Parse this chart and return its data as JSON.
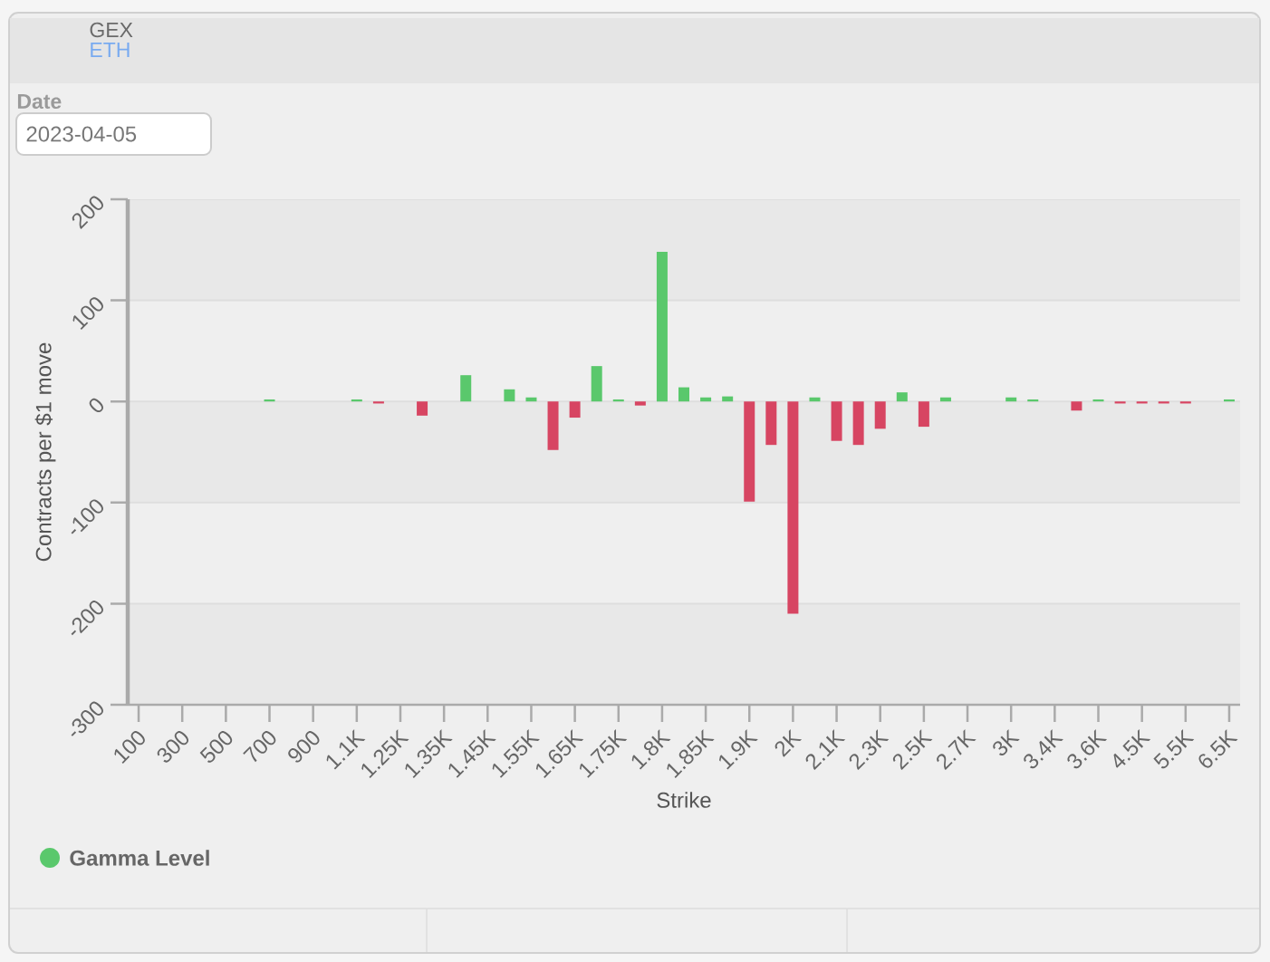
{
  "chart_data": {
    "type": "bar",
    "title": "GEX",
    "subtitle": "ETH",
    "xlabel": "Strike",
    "ylabel": "Contracts per $1 move",
    "annotations": [
      "Date",
      "2023-04-05"
    ],
    "categories": [
      "100",
      null,
      "300",
      null,
      "500",
      null,
      "700",
      null,
      "900",
      null,
      "1.1K",
      null,
      "1.25K",
      null,
      "1.35K",
      null,
      "1.45K",
      null,
      "1.55K",
      null,
      "1.65K",
      null,
      "1.75K",
      null,
      "1.8K",
      null,
      "1.85K",
      null,
      "1.9K",
      null,
      "2K",
      null,
      "2.1K",
      null,
      "2.3K",
      null,
      "2.5K",
      null,
      "2.7K",
      null,
      "3K",
      null,
      "3.4K",
      null,
      "3.6K",
      null,
      "4.5K",
      null,
      "5.5K",
      null,
      "6.5K"
    ],
    "series": [
      {
        "name": "Gamma Level",
        "color": "#5ac86c",
        "colors": [
          null,
          null,
          null,
          null,
          null,
          null,
          "#5ac86c",
          null,
          null,
          null,
          "#5ac86c",
          "#d74562",
          null,
          "#d74562",
          null,
          "#5ac86c",
          null,
          "#5ac86c",
          "#5ac86c",
          "#d74562",
          "#d74562",
          "#5ac86c",
          "#5ac86c",
          "#d74562",
          "#5ac86c",
          "#5ac86c",
          "#5ac86c",
          "#5ac86c",
          "#d74562",
          "#d74562",
          "#d74562",
          "#5ac86c",
          "#d74562",
          "#d74562",
          "#d74562",
          "#5ac86c",
          "#d74562",
          "#5ac86c",
          null,
          null,
          "#5ac86c",
          "#5ac86c",
          null,
          "#d74562",
          "#5ac86c",
          "#d74562",
          "#d74562",
          "#d74562",
          "#d74562",
          null,
          "#5ac86c"
        ],
        "values": [
          null,
          null,
          null,
          null,
          null,
          null,
          2,
          null,
          null,
          null,
          2,
          -2,
          null,
          -14,
          null,
          26,
          null,
          12,
          4,
          -48,
          -16,
          35,
          2,
          -4,
          148,
          14,
          4,
          5,
          -99,
          -43,
          -210,
          4,
          -39,
          -43,
          -27,
          9,
          -25,
          4,
          null,
          null,
          4,
          2,
          null,
          -9,
          2,
          -2,
          -2,
          -2,
          -2,
          null,
          2
        ]
      }
    ],
    "ylim": [
      -300,
      200
    ],
    "yticks": [
      -300,
      -200,
      -100,
      0,
      100,
      200
    ],
    "grid": "y",
    "legend": "bottom left"
  }
}
